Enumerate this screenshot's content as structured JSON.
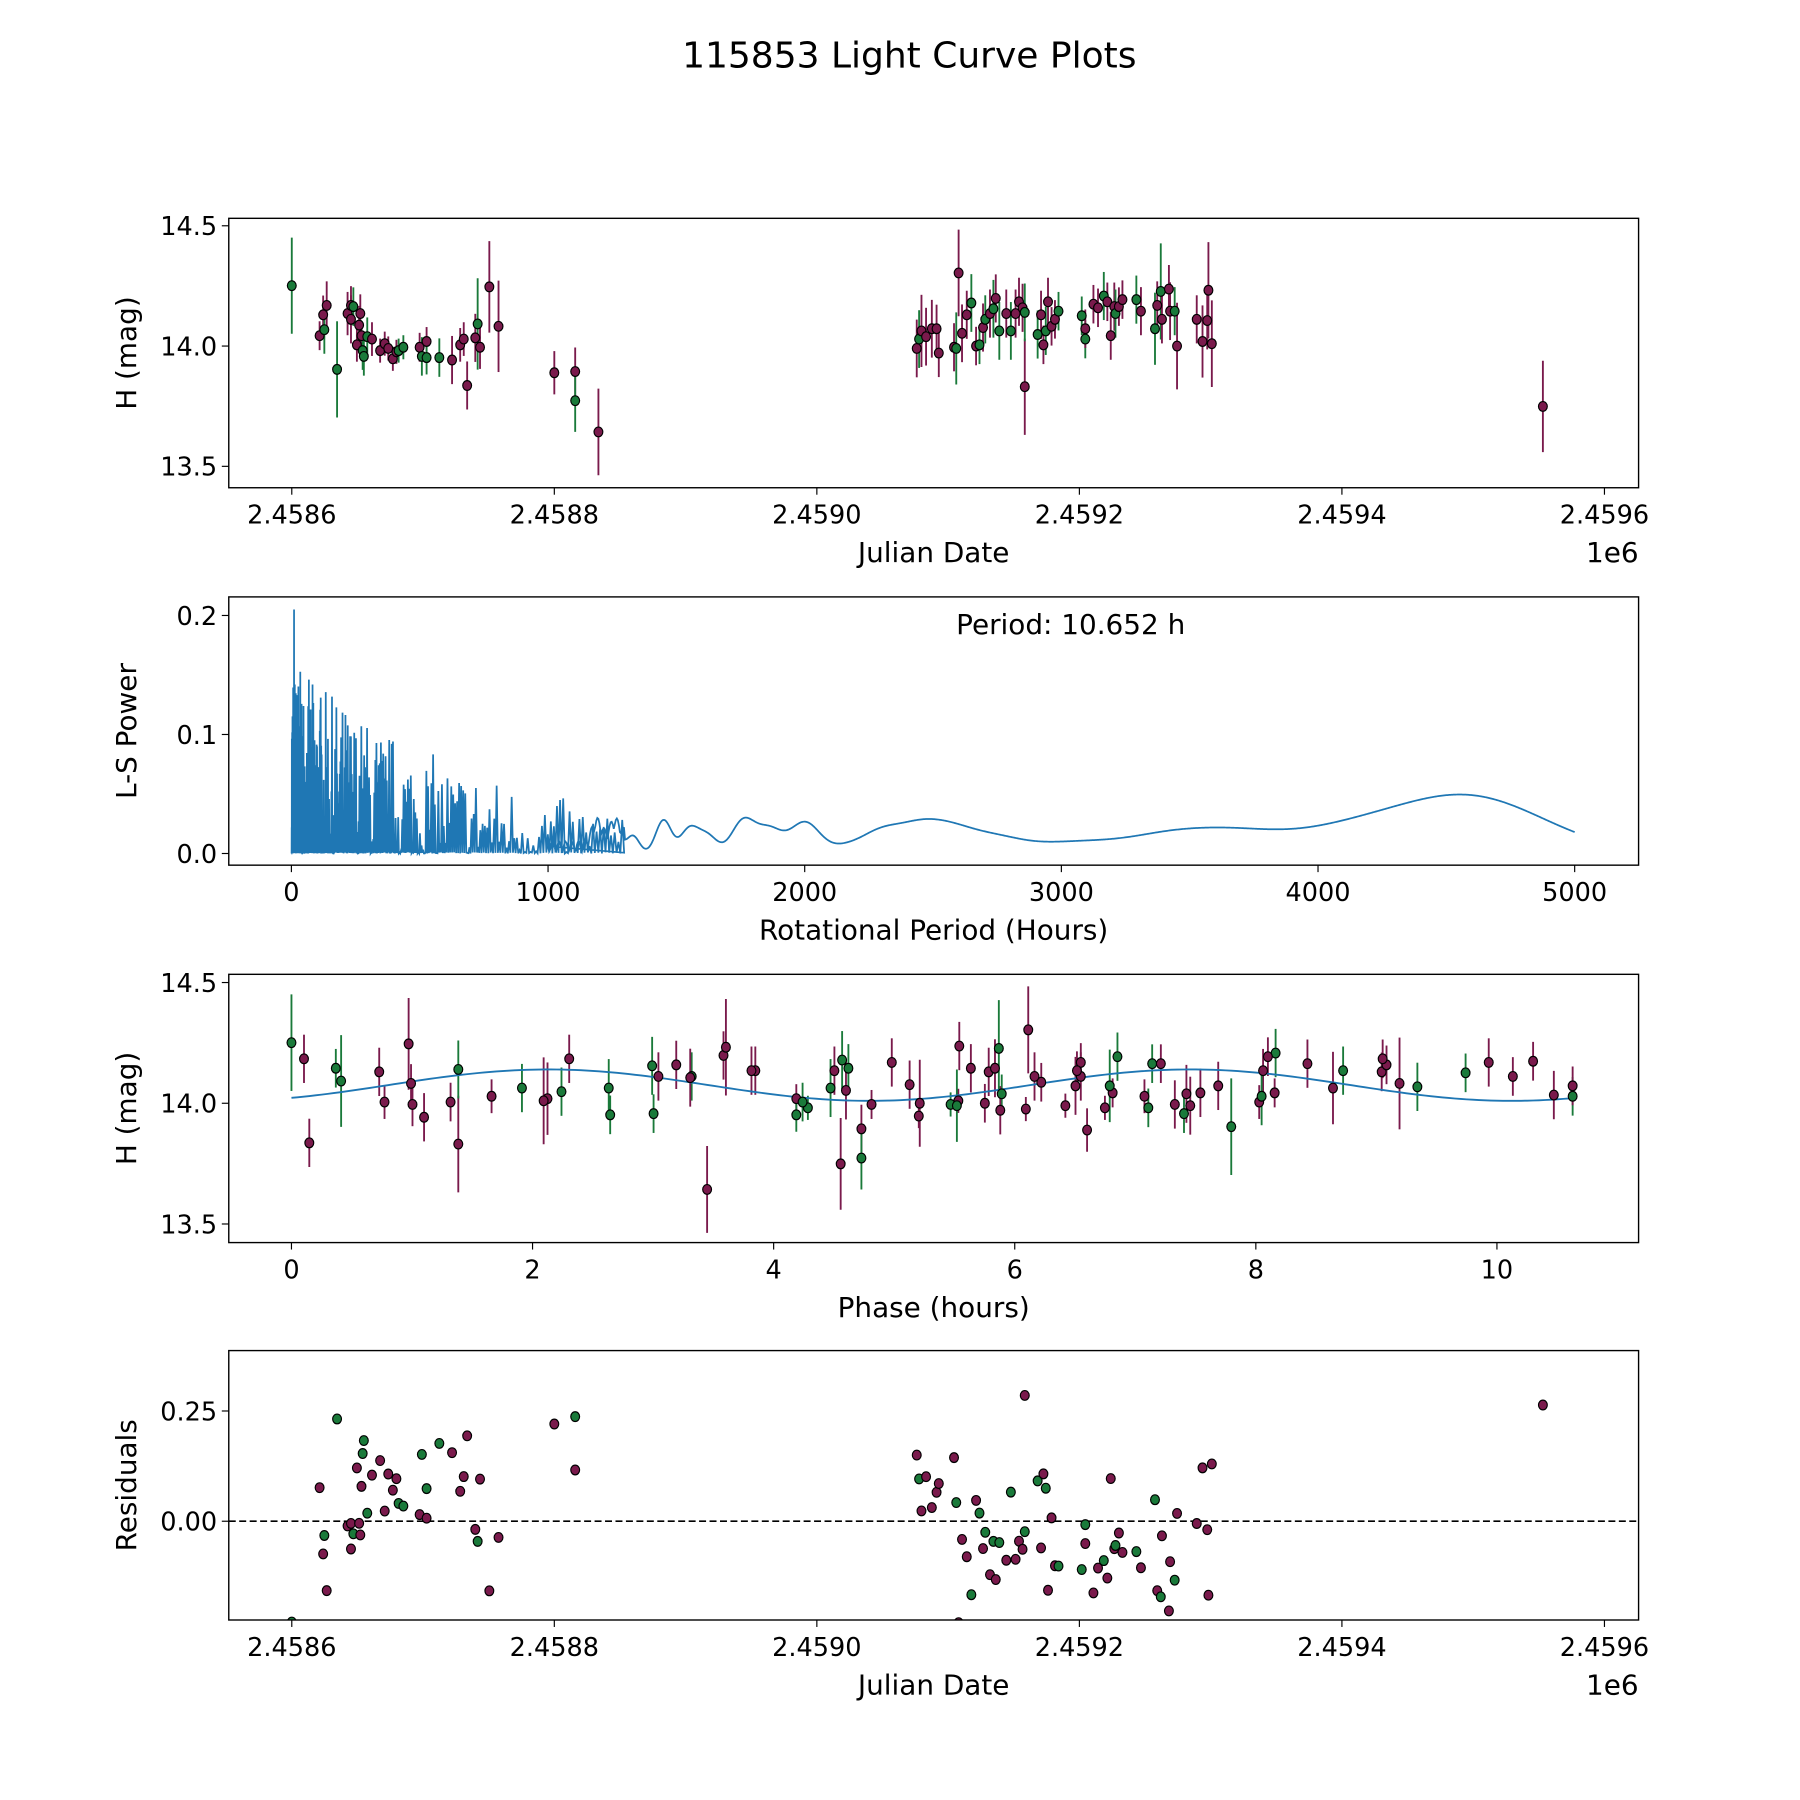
{
  "title": "115853 Light Curve Plots",
  "colors": {
    "m": "#7a1a4c",
    "g": "#1a7a3a",
    "line": "#1f77b4"
  },
  "chart_data": [
    {
      "type": "scatter",
      "name": "light-curve",
      "xlabel": "Julian Date",
      "ylabel": "H (mag)",
      "x_offset_label": "1e6",
      "xlim": [
        2458552,
        2459626
      ],
      "ylim": [
        13.411,
        14.531
      ],
      "xticks": [
        2458600,
        2458800,
        2459000,
        2459200,
        2459400,
        2459600
      ],
      "xtick_labels": [
        "2.4586",
        "2.4588",
        "2.4590",
        "2.4592",
        "2.4594",
        "2.4596"
      ],
      "yticks": [
        13.5,
        14.0,
        14.5
      ],
      "ytick_labels": [
        "13.5",
        "14.0",
        "14.5"
      ],
      "points_format": [
        "julian_date",
        "H_mag",
        "error",
        "filter_color"
      ],
      "points": [
        [
          2458600.0,
          14.251,
          0.2,
          "g"
        ],
        [
          2458621.2,
          14.043,
          0.06,
          "m"
        ],
        [
          2458623.9,
          14.13,
          0.08,
          "m"
        ],
        [
          2458624.8,
          14.068,
          0.1,
          "g"
        ],
        [
          2458626.6,
          14.169,
          0.1,
          "m"
        ],
        [
          2458634.5,
          13.903,
          0.2,
          "g"
        ],
        [
          2458642.5,
          14.135,
          0.09,
          "m"
        ],
        [
          2458645.1,
          14.169,
          0.08,
          "m"
        ],
        [
          2458645.1,
          14.111,
          0.1,
          "m"
        ],
        [
          2458646.9,
          14.164,
          0.08,
          "g"
        ],
        [
          2458649.6,
          14.005,
          0.07,
          "m"
        ],
        [
          2458651.3,
          14.087,
          0.08,
          "m"
        ],
        [
          2458652.2,
          14.135,
          0.08,
          "m"
        ],
        [
          2458653.1,
          14.043,
          0.06,
          "m"
        ],
        [
          2458654.0,
          13.981,
          0.08,
          "g"
        ],
        [
          2458654.9,
          13.957,
          0.08,
          "g"
        ],
        [
          2458657.5,
          14.039,
          0.08,
          "g"
        ],
        [
          2458661.1,
          14.029,
          0.07,
          "m"
        ],
        [
          2458667.3,
          13.981,
          0.05,
          "m"
        ],
        [
          2458670.8,
          14.01,
          0.05,
          "m"
        ],
        [
          2458673.5,
          13.99,
          0.05,
          "m"
        ],
        [
          2458677.0,
          13.947,
          0.05,
          "m"
        ],
        [
          2458679.7,
          13.976,
          0.05,
          "m"
        ],
        [
          2458681.4,
          13.981,
          0.05,
          "g"
        ],
        [
          2458685.0,
          13.995,
          0.05,
          "g"
        ],
        [
          2458697.4,
          13.995,
          0.06,
          "m"
        ],
        [
          2458699.1,
          13.957,
          0.08,
          "g"
        ],
        [
          2458702.7,
          14.019,
          0.06,
          "m"
        ],
        [
          2458702.7,
          13.952,
          0.07,
          "g"
        ],
        [
          2458712.4,
          13.952,
          0.08,
          "g"
        ],
        [
          2458722.1,
          13.942,
          0.1,
          "m"
        ],
        [
          2458728.3,
          14.005,
          0.07,
          "m"
        ],
        [
          2458731.0,
          14.029,
          0.07,
          "m"
        ],
        [
          2458733.6,
          13.836,
          0.1,
          "m"
        ],
        [
          2458739.8,
          14.034,
          0.1,
          "m"
        ],
        [
          2458741.6,
          14.092,
          0.19,
          "g"
        ],
        [
          2458743.4,
          13.995,
          0.09,
          "m"
        ],
        [
          2458750.5,
          14.246,
          0.19,
          "m"
        ],
        [
          2458757.5,
          14.082,
          0.19,
          "m"
        ],
        [
          2458800.0,
          13.889,
          0.09,
          "m"
        ],
        [
          2458815.9,
          13.894,
          0.1,
          "m"
        ],
        [
          2458815.9,
          13.773,
          0.13,
          "g"
        ],
        [
          2458833.6,
          13.643,
          0.18,
          "m"
        ],
        [
          2459076.1,
          13.99,
          0.12,
          "m"
        ],
        [
          2459077.9,
          14.029,
          0.12,
          "g"
        ],
        [
          2459079.7,
          14.063,
          0.15,
          "m"
        ],
        [
          2459083.2,
          14.039,
          0.12,
          "m"
        ],
        [
          2459087.6,
          14.072,
          0.12,
          "m"
        ],
        [
          2459091.2,
          14.072,
          0.1,
          "m"
        ],
        [
          2459092.9,
          13.971,
          0.1,
          "m"
        ],
        [
          2459104.5,
          13.995,
          0.1,
          "m"
        ],
        [
          2459106.2,
          13.99,
          0.15,
          "g"
        ],
        [
          2459108.0,
          14.304,
          0.18,
          "m"
        ],
        [
          2459110.6,
          14.053,
          0.12,
          "m"
        ],
        [
          2459114.2,
          14.13,
          0.1,
          "m"
        ],
        [
          2459117.7,
          14.179,
          0.12,
          "g"
        ],
        [
          2459121.3,
          14.0,
          0.08,
          "m"
        ],
        [
          2459123.9,
          14.005,
          0.08,
          "g"
        ],
        [
          2459126.6,
          14.077,
          0.1,
          "m"
        ],
        [
          2459128.3,
          14.111,
          0.1,
          "g"
        ],
        [
          2459131.9,
          14.135,
          0.1,
          "m"
        ],
        [
          2459134.5,
          14.155,
          0.12,
          "g"
        ],
        [
          2459136.3,
          14.198,
          0.1,
          "m"
        ],
        [
          2459139.0,
          14.063,
          0.12,
          "g"
        ],
        [
          2459144.3,
          14.135,
          0.1,
          "m"
        ],
        [
          2459147.8,
          14.063,
          0.12,
          "g"
        ],
        [
          2459151.4,
          14.135,
          0.1,
          "m"
        ],
        [
          2459154.0,
          14.184,
          0.1,
          "m"
        ],
        [
          2459156.7,
          14.159,
          0.1,
          "m"
        ],
        [
          2459158.4,
          13.831,
          0.2,
          "m"
        ],
        [
          2459158.4,
          14.14,
          0.12,
          "g"
        ],
        [
          2459168.2,
          14.048,
          0.1,
          "g"
        ],
        [
          2459170.8,
          14.13,
          0.1,
          "m"
        ],
        [
          2459172.6,
          14.005,
          0.08,
          "m"
        ],
        [
          2459174.4,
          14.063,
          0.1,
          "g"
        ],
        [
          2459176.1,
          14.184,
          0.1,
          "m"
        ],
        [
          2459178.8,
          14.082,
          0.08,
          "m"
        ],
        [
          2459181.4,
          14.111,
          0.08,
          "m"
        ],
        [
          2459184.1,
          14.145,
          0.08,
          "g"
        ],
        [
          2459201.8,
          14.126,
          0.08,
          "g"
        ],
        [
          2459204.5,
          14.029,
          0.08,
          "g"
        ],
        [
          2459204.5,
          14.072,
          0.08,
          "m"
        ],
        [
          2459210.7,
          14.174,
          0.08,
          "m"
        ],
        [
          2459214.2,
          14.159,
          0.08,
          "m"
        ],
        [
          2459218.6,
          14.208,
          0.1,
          "g"
        ],
        [
          2459221.3,
          14.184,
          0.08,
          "m"
        ],
        [
          2459223.9,
          14.043,
          0.1,
          "m"
        ],
        [
          2459226.6,
          14.164,
          0.1,
          "m"
        ],
        [
          2459227.5,
          14.135,
          0.1,
          "g"
        ],
        [
          2459230.1,
          14.164,
          0.08,
          "m"
        ],
        [
          2459232.8,
          14.193,
          0.08,
          "m"
        ],
        [
          2459243.4,
          14.193,
          0.1,
          "g"
        ],
        [
          2459246.9,
          14.145,
          0.1,
          "m"
        ],
        [
          2459257.6,
          14.072,
          0.15,
          "g"
        ],
        [
          2459259.3,
          14.169,
          0.1,
          "m"
        ],
        [
          2459262.0,
          14.227,
          0.2,
          "g"
        ],
        [
          2459262.9,
          14.111,
          0.1,
          "m"
        ],
        [
          2459268.2,
          14.237,
          0.1,
          "m"
        ],
        [
          2459269.1,
          14.145,
          0.12,
          "m"
        ],
        [
          2459272.6,
          14.145,
          0.1,
          "g"
        ],
        [
          2459274.4,
          14.0,
          0.18,
          "m"
        ],
        [
          2459289.4,
          14.111,
          0.1,
          "m"
        ],
        [
          2459293.8,
          14.019,
          0.15,
          "m"
        ],
        [
          2459297.4,
          14.106,
          0.12,
          "m"
        ],
        [
          2459298.3,
          14.232,
          0.2,
          "m"
        ],
        [
          2459300.9,
          14.01,
          0.18,
          "m"
        ],
        [
          2459553.1,
          13.749,
          0.19,
          "m"
        ]
      ]
    },
    {
      "type": "line",
      "name": "periodogram",
      "xlabel": "Rotational Period (Hours)",
      "ylabel": "L-S Power",
      "annotation": "Period: 10.652 h",
      "best_period": 10.652,
      "best_power": 0.205,
      "xlim": [
        -244,
        5249
      ],
      "ylim": [
        -0.0098,
        0.2156
      ],
      "xticks": [
        0,
        1000,
        2000,
        3000,
        4000,
        5000
      ],
      "xtick_labels": [
        "0",
        "1000",
        "2000",
        "3000",
        "4000",
        "5000"
      ],
      "yticks": [
        0.0,
        0.1,
        0.2
      ],
      "ytick_labels": [
        "0.0",
        "0.1",
        "0.2"
      ],
      "short_period_envelope": {
        "max_period": 1300,
        "power_at_0": 0.16,
        "power_at_1000": 0.05
      },
      "long_period_peaks": [
        [
          1190,
          0.02
        ],
        [
          1260,
          0.02
        ],
        [
          1330,
          0.015
        ],
        [
          1450,
          0.028
        ],
        [
          1550,
          0.02
        ],
        [
          1620,
          0.015
        ],
        [
          1760,
          0.027
        ],
        [
          1860,
          0.02
        ],
        [
          2000,
          0.026
        ],
        [
          2150,
          0.005
        ],
        [
          2290,
          0.016
        ],
        [
          2430,
          0.018
        ],
        [
          2560,
          0.018
        ],
        [
          2730,
          0.012
        ],
        [
          2900,
          0.004
        ],
        [
          3080,
          0.007
        ],
        [
          3370,
          0.011
        ],
        [
          3640,
          0.016
        ],
        [
          4070,
          0.014
        ],
        [
          4580,
          0.048
        ]
      ]
    },
    {
      "type": "scatter",
      "name": "phase-folded",
      "xlabel": "Phase (hours)",
      "ylabel": "H (mag)",
      "xlim": [
        -0.52,
        11.175
      ],
      "ylim": [
        13.423,
        14.534
      ],
      "xticks": [
        0,
        2,
        4,
        6,
        8,
        10
      ],
      "xtick_labels": [
        "0",
        "2",
        "4",
        "6",
        "8",
        "10"
      ],
      "yticks": [
        13.5,
        14.0,
        14.5
      ],
      "ytick_labels": [
        "13.5",
        "14.0",
        "14.5"
      ],
      "model": {
        "type": "sinusoid",
        "mean": 14.075,
        "amplitude": 0.065,
        "period_hours": 5.326,
        "phase_shift": 0.8
      }
    },
    {
      "type": "scatter",
      "name": "residuals",
      "xlabel": "Julian Date",
      "ylabel": "Residuals",
      "x_offset_label": "1e6",
      "xlim": [
        2458552,
        2459626
      ],
      "ylim": [
        -0.224,
        0.387
      ],
      "xticks": [
        2458600,
        2458800,
        2459000,
        2459200,
        2459400,
        2459600
      ],
      "xtick_labels": [
        "2.4586",
        "2.4588",
        "2.4590",
        "2.4592",
        "2.4594",
        "2.4596"
      ],
      "yticks": [
        0.0,
        0.25
      ],
      "ytick_labels": [
        "0.00",
        "0.25"
      ],
      "reference_line": 0.0
    }
  ]
}
